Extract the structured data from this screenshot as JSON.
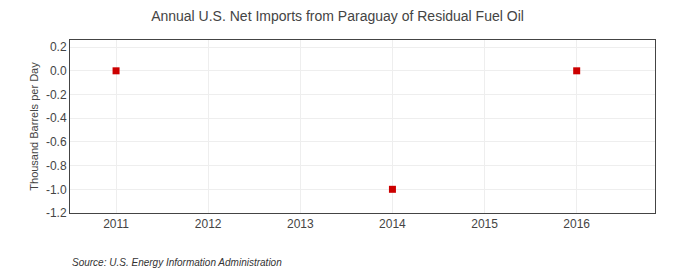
{
  "chart_data": {
    "type": "scatter",
    "title": "Annual U.S. Net Imports from Paraguay of Residual Fuel Oil",
    "ylabel": "Thousand Barrels per Day",
    "annotations": [
      "Source: U.S. Energy Information Administration"
    ],
    "x": [
      2011,
      2014,
      2016
    ],
    "values": [
      0,
      -1,
      0
    ],
    "color": "#cc0000",
    "marker": "square",
    "xlim": [
      2010.5,
      2016.85
    ],
    "xticks": [
      2011,
      2012,
      2013,
      2014,
      2015,
      2016
    ],
    "ylim": [
      -1.2,
      0.26
    ],
    "yticks": [
      0.2,
      {
        "value": 0,
        "label": "0.0"
      },
      -0.2,
      -0.4,
      -0.6,
      -0.8,
      {
        "value": -1,
        "label": "-1.0"
      },
      -1.2
    ],
    "grid": true
  }
}
